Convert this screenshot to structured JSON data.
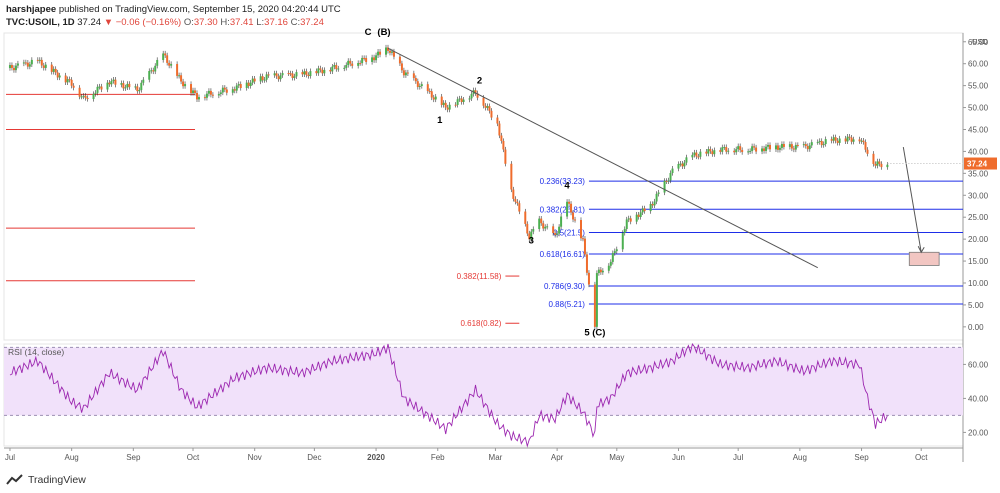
{
  "header": {
    "author": "harshjapee",
    "published_text": "published on TradingView.com, September 15, 2020 04:20:44 UTC",
    "symbol": "TVC:USOIL, 1D",
    "last": "37.24",
    "change": "▼ −0.06 (−0.16%)",
    "o_label": "O:",
    "o_value": "37.30",
    "h_label": "H:",
    "h_value": "37.41",
    "l_label": "L:",
    "l_value": "37.16",
    "c_label": "C:",
    "c_value": "37.24"
  },
  "brand": {
    "name": "TradingView"
  },
  "colors": {
    "up": "#4caf50",
    "down": "#ef6c2c",
    "red_line": "#e53935",
    "blue_line": "#1e2ee8",
    "rsi": "#9c27b0",
    "rsi_band": "#f1e1fa",
    "target_box": "#f2c6c2"
  },
  "chart_data": [
    {
      "type": "candlestick",
      "title": "",
      "currency_label": "USD",
      "x_ticks": [
        "Jul",
        "Aug",
        "Sep",
        "Oct",
        "Nov",
        "Dec",
        "2020",
        "Feb",
        "Mar",
        "Apr",
        "May",
        "Jun",
        "Jul",
        "Aug",
        "Sep",
        "Oct"
      ],
      "y_ticks": [
        "65.00",
        "60.00",
        "55.00",
        "50.00",
        "45.00",
        "40.00",
        "35.00",
        "30.00",
        "25.00",
        "20.00",
        "15.00",
        "10.00",
        "5.00",
        "0.00"
      ],
      "ylim": [
        -3,
        67
      ],
      "last_price_label": "37.24",
      "close_series": [
        {
          "date": "2019-07-01",
          "close": 59.0
        },
        {
          "date": "2019-07-15",
          "close": 60.5
        },
        {
          "date": "2019-08-01",
          "close": 55.5
        },
        {
          "date": "2019-08-07",
          "close": 52.0
        },
        {
          "date": "2019-08-20",
          "close": 56.0
        },
        {
          "date": "2019-09-03",
          "close": 54.0
        },
        {
          "date": "2019-09-16",
          "close": 62.0
        },
        {
          "date": "2019-09-25",
          "close": 56.0
        },
        {
          "date": "2019-10-03",
          "close": 52.5
        },
        {
          "date": "2019-10-22",
          "close": 54.5
        },
        {
          "date": "2019-11-07",
          "close": 57.0
        },
        {
          "date": "2019-11-25",
          "close": 57.5
        },
        {
          "date": "2019-12-10",
          "close": 59.0
        },
        {
          "date": "2019-12-31",
          "close": 61.5
        },
        {
          "date": "2020-01-07",
          "close": 63.5
        },
        {
          "date": "2020-01-15",
          "close": 58.0
        },
        {
          "date": "2020-01-27",
          "close": 53.5
        },
        {
          "date": "2020-02-05",
          "close": 50.0
        },
        {
          "date": "2020-02-20",
          "close": 53.5
        },
        {
          "date": "2020-03-02",
          "close": 46.5
        },
        {
          "date": "2020-03-09",
          "close": 31.0
        },
        {
          "date": "2020-03-18",
          "close": 20.5
        },
        {
          "date": "2020-03-23",
          "close": 24.0
        },
        {
          "date": "2020-03-31",
          "close": 20.5
        },
        {
          "date": "2020-04-06",
          "close": 28.5
        },
        {
          "date": "2020-04-14",
          "close": 19.5
        },
        {
          "date": "2020-04-20",
          "close": 0.0
        },
        {
          "date": "2020-04-21",
          "close": 12.0
        },
        {
          "date": "2020-04-28",
          "close": 15.0
        },
        {
          "date": "2020-05-06",
          "close": 24.0
        },
        {
          "date": "2020-05-18",
          "close": 27.5
        },
        {
          "date": "2020-05-29",
          "close": 35.5
        },
        {
          "date": "2020-06-08",
          "close": 39.0
        },
        {
          "date": "2020-06-22",
          "close": 40.5
        },
        {
          "date": "2020-07-06",
          "close": 40.5
        },
        {
          "date": "2020-07-20",
          "close": 41.0
        },
        {
          "date": "2020-08-03",
          "close": 41.0
        },
        {
          "date": "2020-08-17",
          "close": 42.5
        },
        {
          "date": "2020-08-31",
          "close": 43.0
        },
        {
          "date": "2020-09-04",
          "close": 40.0
        },
        {
          "date": "2020-09-08",
          "close": 37.0
        },
        {
          "date": "2020-09-14",
          "close": 37.24
        }
      ],
      "wave_labels": [
        {
          "text": "C",
          "date": "2019-12-28",
          "price": 66.5
        },
        {
          "text": "(B)",
          "date": "2020-01-05",
          "price": 66.5
        },
        {
          "text": "1",
          "date": "2020-02-02",
          "price": 46.5
        },
        {
          "text": "2",
          "date": "2020-02-22",
          "price": 55.5
        },
        {
          "text": "3",
          "date": "2020-03-19",
          "price": 19.0
        },
        {
          "text": "4",
          "date": "2020-04-06",
          "price": 31.5
        },
        {
          "text": "5 (C)",
          "date": "2020-04-20",
          "price": -2.0
        }
      ],
      "fib_levels_blue": [
        {
          "label": "0.236(33.23)",
          "price": 33.23
        },
        {
          "label": "0.382(26.81)",
          "price": 26.81
        },
        {
          "label": "0.5(21.5)",
          "price": 21.5
        },
        {
          "label": "0.618(16.61)",
          "price": 16.61
        },
        {
          "label": "0.786(9.30)",
          "price": 9.3
        },
        {
          "label": "0.88(5.21)",
          "price": 5.21
        }
      ],
      "fib_levels_red": [
        {
          "label": "0.382(11.58)",
          "price": 11.58
        },
        {
          "label": "0.618(0.82)",
          "price": 0.82
        }
      ],
      "red_horizontal_levels": [
        53.0,
        45.0,
        22.5,
        10.5
      ],
      "trendline": {
        "from": {
          "date": "2020-01-07",
          "price": 63.5
        },
        "to": {
          "date": "2020-08-10",
          "price": 13.5
        }
      },
      "projection_arrow": {
        "from": {
          "date": "2020-09-22",
          "price": 41.0
        },
        "to": {
          "date": "2020-10-01",
          "price": 17.0
        }
      },
      "target_zone": {
        "date_from": "2020-09-25",
        "date_to": "2020-10-10",
        "price_low": 14.0,
        "price_high": 17.0
      }
    },
    {
      "type": "line",
      "title": "RSI (14, close)",
      "y_ticks": [
        "60.00",
        "40.00",
        "20.00"
      ],
      "ylim": [
        12,
        72
      ],
      "band": [
        30,
        70
      ],
      "series": [
        {
          "date": "2019-07-01",
          "value": 55
        },
        {
          "date": "2019-07-15",
          "value": 62
        },
        {
          "date": "2019-08-01",
          "value": 38
        },
        {
          "date": "2019-08-07",
          "value": 34
        },
        {
          "date": "2019-08-20",
          "value": 55
        },
        {
          "date": "2019-09-03",
          "value": 45
        },
        {
          "date": "2019-09-16",
          "value": 68
        },
        {
          "date": "2019-09-25",
          "value": 45
        },
        {
          "date": "2019-10-03",
          "value": 35
        },
        {
          "date": "2019-10-22",
          "value": 52
        },
        {
          "date": "2019-11-07",
          "value": 58
        },
        {
          "date": "2019-11-25",
          "value": 55
        },
        {
          "date": "2019-12-10",
          "value": 62
        },
        {
          "date": "2019-12-31",
          "value": 66
        },
        {
          "date": "2020-01-07",
          "value": 70
        },
        {
          "date": "2020-01-15",
          "value": 40
        },
        {
          "date": "2020-01-27",
          "value": 30
        },
        {
          "date": "2020-02-05",
          "value": 22
        },
        {
          "date": "2020-02-20",
          "value": 45
        },
        {
          "date": "2020-03-02",
          "value": 25
        },
        {
          "date": "2020-03-09",
          "value": 18
        },
        {
          "date": "2020-03-18",
          "value": 14
        },
        {
          "date": "2020-03-23",
          "value": 30
        },
        {
          "date": "2020-03-31",
          "value": 28
        },
        {
          "date": "2020-04-06",
          "value": 42
        },
        {
          "date": "2020-04-14",
          "value": 32
        },
        {
          "date": "2020-04-20",
          "value": 18
        },
        {
          "date": "2020-04-21",
          "value": 36
        },
        {
          "date": "2020-04-28",
          "value": 40
        },
        {
          "date": "2020-05-06",
          "value": 55
        },
        {
          "date": "2020-05-18",
          "value": 58
        },
        {
          "date": "2020-05-29",
          "value": 62
        },
        {
          "date": "2020-06-08",
          "value": 71
        },
        {
          "date": "2020-06-22",
          "value": 60
        },
        {
          "date": "2020-07-06",
          "value": 58
        },
        {
          "date": "2020-07-20",
          "value": 62
        },
        {
          "date": "2020-08-03",
          "value": 56
        },
        {
          "date": "2020-08-17",
          "value": 62
        },
        {
          "date": "2020-08-31",
          "value": 60
        },
        {
          "date": "2020-09-04",
          "value": 40
        },
        {
          "date": "2020-09-08",
          "value": 25
        },
        {
          "date": "2020-09-14",
          "value": 30
        }
      ]
    }
  ]
}
